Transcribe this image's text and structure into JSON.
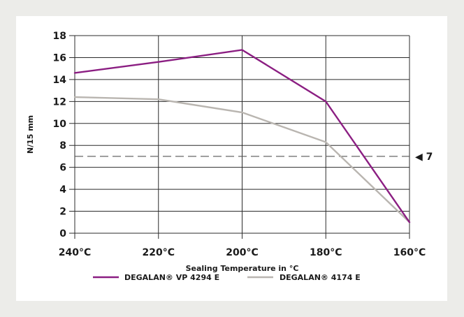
{
  "chart_data": {
    "type": "line",
    "xlabel": "Sealing Temperature in °C",
    "ylabel": "N/15 mm",
    "categories": [
      "240°C",
      "220°C",
      "200°C",
      "180°C",
      "160°C"
    ],
    "ylim": [
      0,
      18
    ],
    "yticks": [
      "0",
      "2",
      "4",
      "6",
      "8",
      "10",
      "12",
      "14",
      "16",
      "18"
    ],
    "grid": true,
    "legend_position": "bottom",
    "series": [
      {
        "name": "DEGALAN® VP 4294 E",
        "color": "#8b1e82",
        "values": [
          14.6,
          15.6,
          16.7,
          12.0,
          1.0
        ]
      },
      {
        "name": "DEGALAN® 4174 E",
        "color": "#b9b5b0",
        "values": [
          12.4,
          12.2,
          11.0,
          8.3,
          1.0
        ]
      }
    ],
    "reference_line": {
      "value": 7,
      "label": "◀ 7",
      "style": "dashed",
      "color": "#555555"
    }
  }
}
